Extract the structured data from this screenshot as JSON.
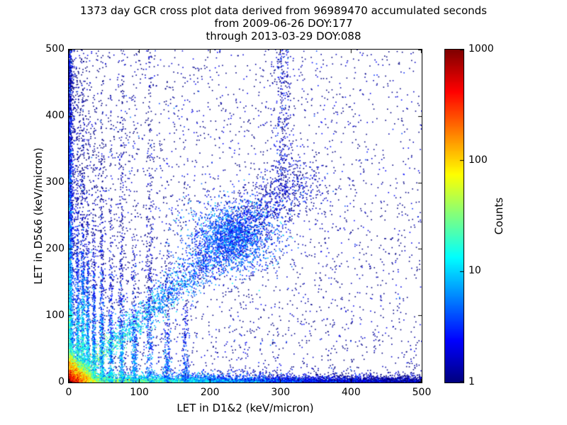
{
  "chart_data": {
    "type": "heatmap",
    "title": "1373 day GCR cross plot data derived from 96989470 accumulated seconds",
    "subtitle": [
      "from 2009-06-26 DOY:177",
      "through 2013-03-29 DOY:088"
    ],
    "xlabel": "LET in D1&2 (keV/micron)",
    "ylabel": "LET in D5&6 (keV/micron)",
    "xlim": [
      0,
      500
    ],
    "ylim": [
      0,
      500
    ],
    "xticks": [
      0,
      100,
      200,
      300,
      400,
      500
    ],
    "yticks": [
      0,
      100,
      200,
      300,
      400,
      500
    ],
    "grid": false,
    "colorbar": {
      "label": "Counts",
      "scale": "log",
      "min": 1,
      "max": 1000,
      "ticks": [
        1000,
        100,
        10,
        1
      ],
      "colormap": "jet"
    },
    "features": [
      {
        "kind": "background",
        "n": 2600,
        "x_pow": 1.6,
        "y_pow": 1.15,
        "count": 1
      },
      {
        "kind": "background",
        "n": 1000,
        "x_pow": 1.0,
        "y_pow": 1.0,
        "count": 1
      },
      {
        "kind": "hband",
        "n": 8000,
        "y_scale": 3.5,
        "x_pow": 2.2,
        "x_uniform_frac": 0.4,
        "count0": 80,
        "x_decay": 90,
        "y_decay": 9
      },
      {
        "kind": "vband",
        "n": 3000,
        "x_scale": 2.5,
        "y_pow": 1.6,
        "count0": 35,
        "y_decay": 120,
        "x_decay": 5
      },
      {
        "kind": "diag",
        "n": 2600,
        "s_min": 15,
        "s_max": 335,
        "s_pow": 0.85,
        "slope": 0.94,
        "spread_base": 4,
        "spread_slope": 0.06,
        "count0": 30,
        "s_decay": 80
      },
      {
        "kind": "gauss",
        "n": 1700,
        "cx": 233,
        "cy": 218,
        "sx": 30,
        "sy": 26,
        "count": 4
      },
      {
        "kind": "column",
        "x": 13,
        "sx": 1.4,
        "y_scale": 120,
        "n": 600,
        "count0": 25
      },
      {
        "kind": "column",
        "x": 20,
        "sx": 1.5,
        "y_scale": 150,
        "n": 700,
        "count0": 30
      },
      {
        "kind": "column",
        "x": 27,
        "sx": 1.4,
        "y_scale": 110,
        "n": 500,
        "count0": 18
      },
      {
        "kind": "column",
        "x": 36,
        "sx": 1.5,
        "y_scale": 100,
        "n": 450,
        "count0": 14
      },
      {
        "kind": "column",
        "x": 47,
        "sx": 1.6,
        "y_scale": 130,
        "n": 450,
        "count0": 12
      },
      {
        "kind": "column",
        "x": 60,
        "sx": 1.8,
        "y_scale": 90,
        "n": 350,
        "count0": 10
      },
      {
        "kind": "column",
        "x": 75,
        "sx": 2.0,
        "y_scale": 160,
        "n": 400,
        "count0": 10
      },
      {
        "kind": "column",
        "x": 93,
        "sx": 2.2,
        "y_scale": 80,
        "n": 300,
        "count0": 8
      },
      {
        "kind": "column",
        "x": 115,
        "sx": 2.5,
        "y_scale": 180,
        "n": 350,
        "count0": 6
      },
      {
        "kind": "column",
        "x": 140,
        "sx": 2.5,
        "y_scale": 60,
        "n": 220,
        "count0": 5
      },
      {
        "kind": "column",
        "x": 165,
        "sx": 2.5,
        "y_scale": 50,
        "n": 180,
        "count0": 4
      },
      {
        "kind": "column_range",
        "x": 303,
        "sx": 6,
        "y_min": 290,
        "y_max": 500,
        "n": 260,
        "count": 1.5
      },
      {
        "kind": "exp_origin",
        "n": 12000,
        "sx": 8,
        "sy": 8,
        "peak": 1000,
        "decay": 13
      }
    ]
  }
}
